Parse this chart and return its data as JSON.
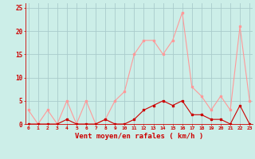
{
  "hours": [
    0,
    1,
    2,
    3,
    4,
    5,
    6,
    7,
    8,
    9,
    10,
    11,
    12,
    13,
    14,
    15,
    16,
    17,
    18,
    19,
    20,
    21,
    22,
    23
  ],
  "vent_moyen": [
    0,
    0,
    0,
    0,
    1,
    0,
    0,
    0,
    1,
    0,
    0,
    1,
    3,
    4,
    5,
    4,
    5,
    2,
    2,
    1,
    1,
    0,
    4,
    0
  ],
  "rafales": [
    3,
    0,
    3,
    0,
    5,
    0,
    5,
    0,
    1,
    5,
    7,
    15,
    18,
    18,
    15,
    18,
    24,
    8,
    6,
    3,
    6,
    3,
    21,
    5
  ],
  "bg_color": "#cceee8",
  "grid_color": "#aacccc",
  "line_color_moyen": "#cc0000",
  "line_color_rafales": "#ff9999",
  "xlabel": "Vent moyen/en rafales ( km/h )",
  "ylabel_ticks": [
    0,
    5,
    10,
    15,
    20,
    25
  ],
  "ylim": [
    0,
    26
  ],
  "xlim": [
    -0.3,
    23.3
  ]
}
